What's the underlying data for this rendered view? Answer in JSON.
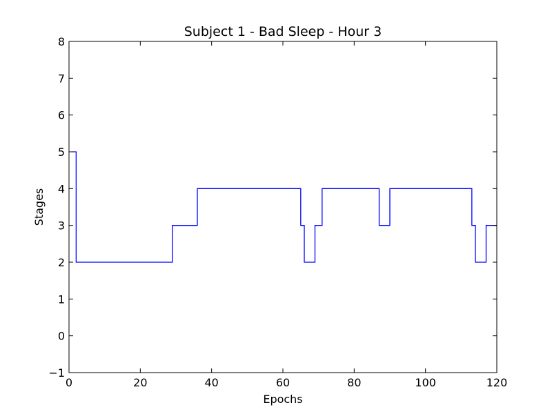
{
  "chart_data": {
    "type": "line",
    "drawstyle": "steps-post",
    "title": "Subject 1 - Bad Sleep - Hour 3",
    "xlabel": "Epochs",
    "ylabel": "Stages",
    "xlim": [
      0,
      120
    ],
    "ylim": [
      -1,
      8
    ],
    "xticks": [
      0,
      20,
      40,
      60,
      80,
      100,
      120
    ],
    "xtick_labels": [
      "0",
      "20",
      "40",
      "60",
      "80",
      "100",
      "120"
    ],
    "yticks": [
      -1,
      0,
      1,
      2,
      3,
      4,
      5,
      6,
      7,
      8
    ],
    "ytick_labels": [
      "−1",
      "0",
      "1",
      "2",
      "3",
      "4",
      "5",
      "6",
      "7",
      "8"
    ],
    "grid": false,
    "legend": false,
    "line_color": "#0000ff",
    "series": [
      {
        "x": [
          1,
          2,
          29,
          36,
          65,
          66,
          69,
          71,
          87,
          90,
          113,
          114,
          117,
          120
        ],
        "y": [
          5,
          2,
          3,
          4,
          3,
          2,
          3,
          4,
          3,
          4,
          3,
          2,
          3,
          3
        ]
      }
    ]
  }
}
